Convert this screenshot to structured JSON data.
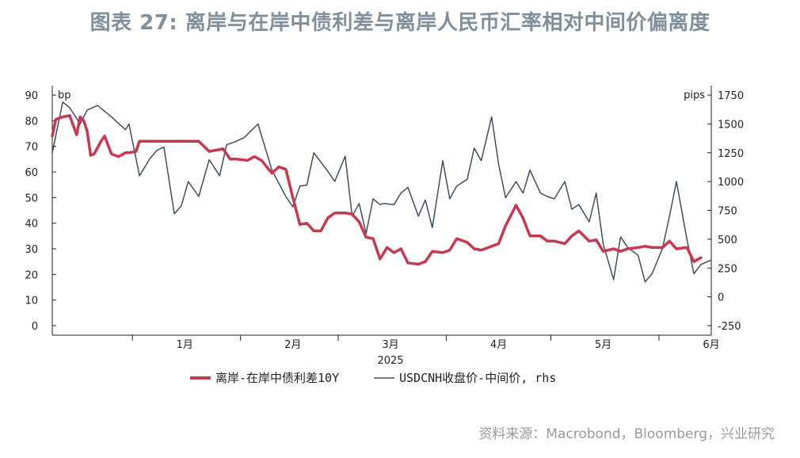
{
  "title": "图表 27: 离岸与在岸中债利差与离岸人民币汇率相对中间价偏离度",
  "source": "资料来源：Macrobond，Bloomberg，兴业研究",
  "chart_data": {
    "type": "line",
    "year_label": "2025",
    "left_unit": "bp",
    "right_unit": "pips",
    "ylim_left": [
      0,
      90
    ],
    "yticks_left": [
      0,
      10,
      20,
      30,
      40,
      50,
      60,
      70,
      80,
      90
    ],
    "ylim_right": [
      -250,
      1750
    ],
    "yticks_right": [
      -250,
      0,
      250,
      500,
      750,
      1000,
      1250,
      1500,
      1750
    ],
    "x_start": "2024-12-09",
    "x_end": "2025-06-16",
    "x_ticks": [
      {
        "date": "2025-01-01",
        "label": "1月"
      },
      {
        "date": "2025-02-01",
        "label": "2月"
      },
      {
        "date": "2025-03-01",
        "label": "3月"
      },
      {
        "date": "2025-04-01",
        "label": "4月"
      },
      {
        "date": "2025-05-01",
        "label": "5月"
      },
      {
        "date": "2025-06-01",
        "label": "6月"
      }
    ],
    "legend_position": "bottom",
    "series": [
      {
        "name": "离岸-在岸中债利差10Y",
        "axis": "left",
        "color": "#c8394f",
        "dates": [
          "2024-12-09",
          "2024-12-10",
          "2024-12-12",
          "2024-12-14",
          "2024-12-16",
          "2024-12-17",
          "2024-12-18",
          "2024-12-19",
          "2024-12-20",
          "2024-12-21",
          "2024-12-23",
          "2024-12-24",
          "2024-12-26",
          "2024-12-28",
          "2024-12-30",
          "2024-12-31",
          "2025-01-02",
          "2025-01-03",
          "2025-01-06",
          "2025-01-08",
          "2025-01-10",
          "2025-01-13",
          "2025-01-15",
          "2025-01-20",
          "2025-01-23",
          "2025-01-27",
          "2025-01-29",
          "2025-01-31",
          "2025-02-03",
          "2025-02-05",
          "2025-02-07",
          "2025-02-10",
          "2025-02-12",
          "2025-02-14",
          "2025-02-16",
          "2025-02-18",
          "2025-02-20",
          "2025-02-22",
          "2025-02-24",
          "2025-02-26",
          "2025-02-28",
          "2025-03-03",
          "2025-03-05",
          "2025-03-07",
          "2025-03-09",
          "2025-03-11",
          "2025-03-13",
          "2025-03-15",
          "2025-03-17",
          "2025-03-19",
          "2025-03-21",
          "2025-03-24",
          "2025-03-26",
          "2025-03-28",
          "2025-03-31",
          "2025-04-02",
          "2025-04-04",
          "2025-04-07",
          "2025-04-09",
          "2025-04-11",
          "2025-04-14",
          "2025-04-16",
          "2025-04-18",
          "2025-04-21",
          "2025-04-23",
          "2025-04-25",
          "2025-04-28",
          "2025-04-30",
          "2025-05-02",
          "2025-05-05",
          "2025-05-07",
          "2025-05-09",
          "2025-05-12",
          "2025-05-14",
          "2025-05-16",
          "2025-05-19",
          "2025-05-21",
          "2025-05-23",
          "2025-05-26",
          "2025-05-28",
          "2025-05-30",
          "2025-06-02",
          "2025-06-04",
          "2025-06-06",
          "2025-06-09",
          "2025-06-11",
          "2025-06-13"
        ],
        "values": [
          74.0,
          80.5,
          81.5,
          82.0,
          74.5,
          81.5,
          80.0,
          76.0,
          66.5,
          67.0,
          72.0,
          74.0,
          67.0,
          66.0,
          67.5,
          67.5,
          68.0,
          72.0,
          72.0,
          72.0,
          72.0,
          72.0,
          72.0,
          72.0,
          68.0,
          69.0,
          65.0,
          65.0,
          64.5,
          66.0,
          64.5,
          59.5,
          62.0,
          61.0,
          50.0,
          39.5,
          40.0,
          37.0,
          37.0,
          42.0,
          44.0,
          44.0,
          43.5,
          40.5,
          34.5,
          34.0,
          26.0,
          30.5,
          28.5,
          30.0,
          24.5,
          24.0,
          25.0,
          29.0,
          28.5,
          29.5,
          34.0,
          32.5,
          30.0,
          29.5,
          31.0,
          32.0,
          39.0,
          47.0,
          42.0,
          35.0,
          35.0,
          33.0,
          33.0,
          32.0,
          35.0,
          37.0,
          33.0,
          33.5,
          29.0,
          30.0,
          29.0,
          30.0,
          30.5,
          31.0,
          30.5,
          30.5,
          33.0,
          30.0,
          30.5,
          25.0,
          26.5
        ]
      },
      {
        "name": "USDCNH收盘价-中间价, rhs",
        "axis": "right",
        "color": "#3f4e63",
        "dates": [
          "2024-12-09",
          "2024-12-12",
          "2024-12-14",
          "2024-12-17",
          "2024-12-19",
          "2024-12-22",
          "2024-12-26",
          "2024-12-30",
          "2024-12-31",
          "2025-01-03",
          "2025-01-06",
          "2025-01-08",
          "2025-01-10",
          "2025-01-13",
          "2025-01-15",
          "2025-01-17",
          "2025-01-20",
          "2025-01-23",
          "2025-01-26",
          "2025-01-28",
          "2025-01-30",
          "2025-02-02",
          "2025-02-06",
          "2025-02-10",
          "2025-02-14",
          "2025-02-16",
          "2025-02-18",
          "2025-02-20",
          "2025-02-22",
          "2025-02-26",
          "2025-02-28",
          "2025-03-03",
          "2025-03-05",
          "2025-03-07",
          "2025-03-09",
          "2025-03-11",
          "2025-03-13",
          "2025-03-14",
          "2025-03-17",
          "2025-03-19",
          "2025-03-21",
          "2025-03-24",
          "2025-03-26",
          "2025-03-28",
          "2025-03-31",
          "2025-04-02",
          "2025-04-04",
          "2025-04-07",
          "2025-04-09",
          "2025-04-11",
          "2025-04-14",
          "2025-04-16",
          "2025-04-18",
          "2025-04-21",
          "2025-04-23",
          "2025-04-25",
          "2025-04-28",
          "2025-04-30",
          "2025-05-02",
          "2025-05-05",
          "2025-05-07",
          "2025-05-09",
          "2025-05-12",
          "2025-05-14",
          "2025-05-16",
          "2025-05-19",
          "2025-05-21",
          "2025-05-23",
          "2025-05-26",
          "2025-05-28",
          "2025-05-30",
          "2025-06-02",
          "2025-06-04",
          "2025-06-06",
          "2025-06-09",
          "2025-06-11",
          "2025-06-13",
          "2025-06-16"
        ],
        "values": [
          1250,
          1690,
          1640,
          1500,
          1620,
          1660,
          1560,
          1450,
          1500,
          1050,
          1200,
          1270,
          1300,
          720,
          790,
          1000,
          870,
          1190,
          1050,
          1320,
          1340,
          1380,
          1500,
          1100,
          870,
          780,
          960,
          970,
          1250,
          1090,
          1000,
          1220,
          700,
          810,
          550,
          850,
          800,
          810,
          800,
          900,
          950,
          700,
          840,
          600,
          1180,
          850,
          960,
          1020,
          1290,
          1180,
          1560,
          1150,
          860,
          1000,
          900,
          1100,
          900,
          870,
          850,
          1000,
          760,
          800,
          650,
          900,
          460,
          150,
          520,
          430,
          360,
          130,
          200,
          420,
          700,
          1000,
          500,
          200,
          280,
          320
        ]
      }
    ]
  }
}
